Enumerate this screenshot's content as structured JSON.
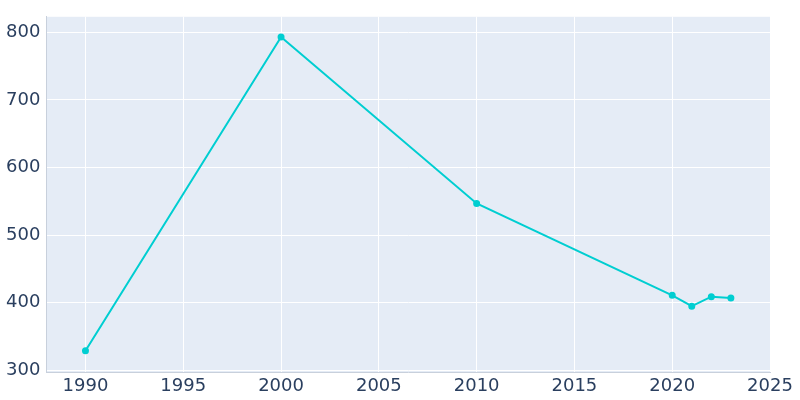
{
  "chart_data": {
    "type": "line",
    "x": [
      1990,
      2000,
      2010,
      2020,
      2021,
      2022,
      2023
    ],
    "values": [
      329,
      793,
      547,
      411,
      395,
      409,
      407
    ],
    "color": "#00ced1",
    "marker": "circle",
    "xlim": [
      1988,
      2025
    ],
    "xticks": [
      1990,
      1995,
      2000,
      2005,
      2010,
      2015,
      2020,
      2025
    ],
    "ylim": [
      297,
      823
    ],
    "yticks": [
      300,
      400,
      500,
      600,
      700,
      800
    ],
    "grid": true
  }
}
